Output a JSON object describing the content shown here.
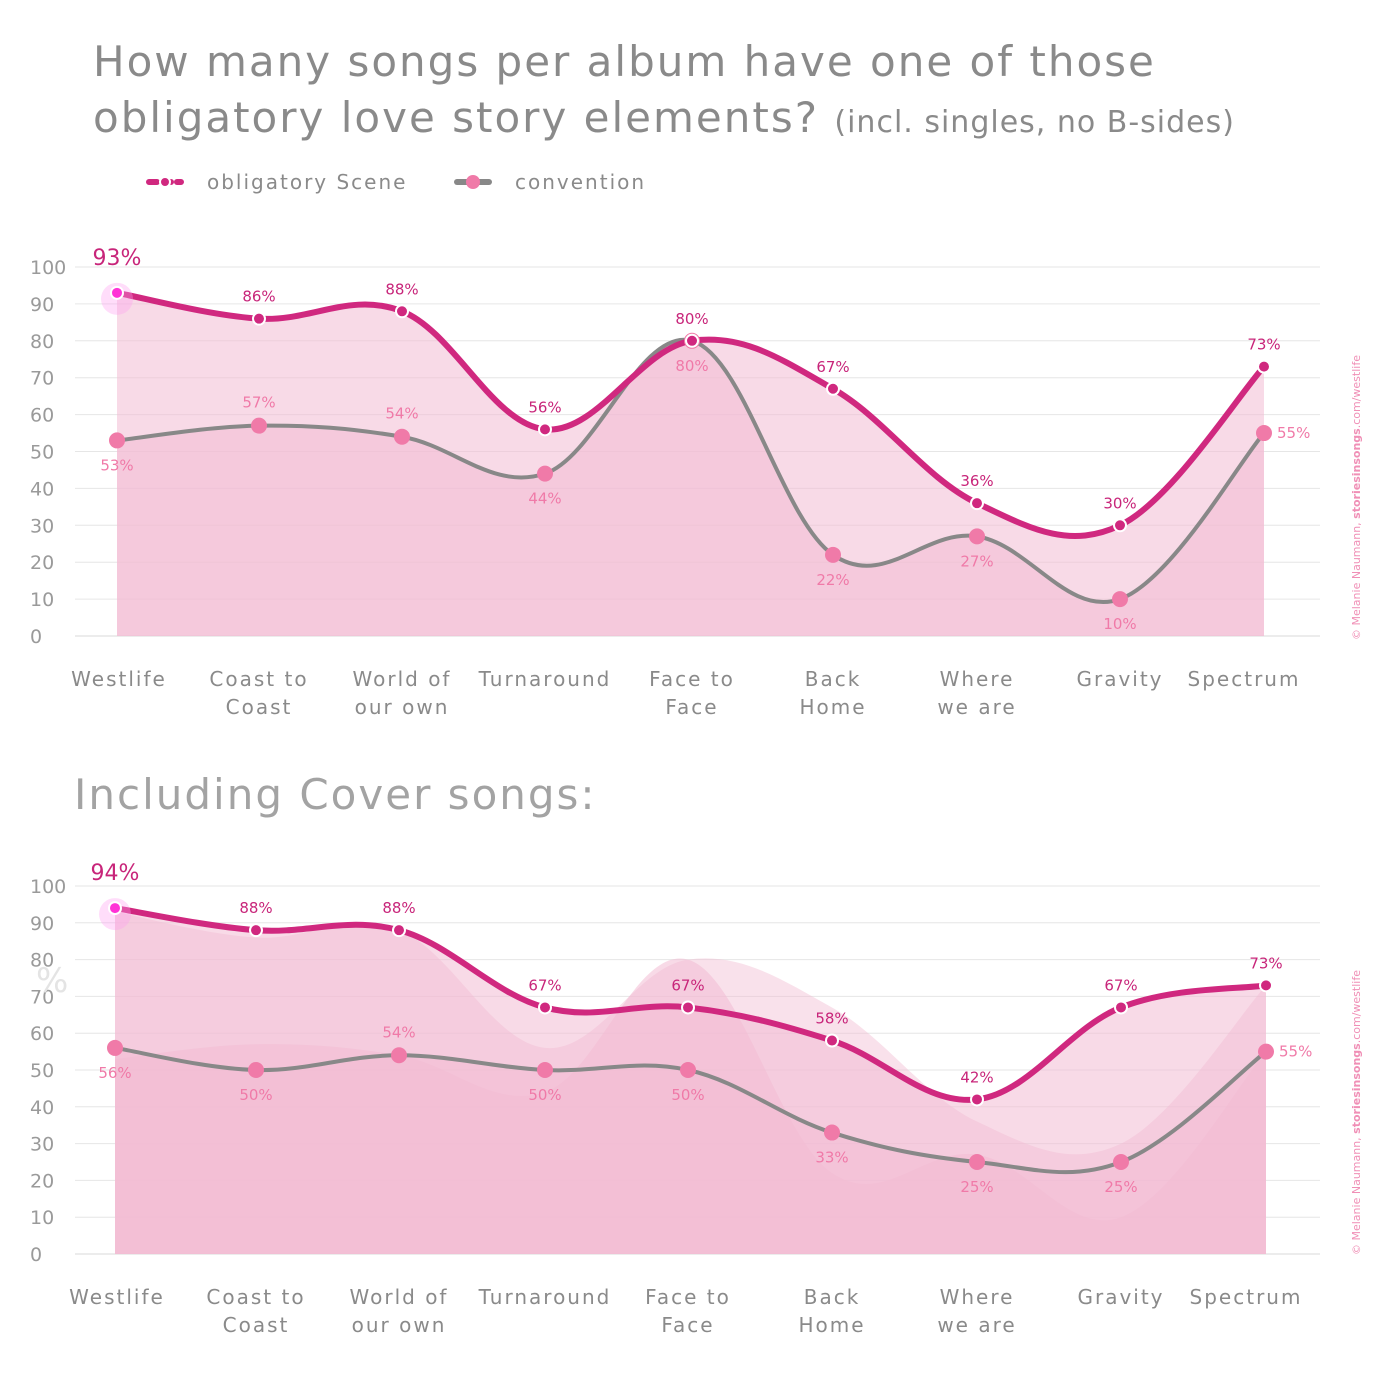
{
  "title": "How many songs per album have one of those obligatory love story elements?",
  "title_note": "(incl. singles, no B-sides)",
  "subtitle": "Including Cover songs:",
  "legend": [
    {
      "label": "obligatory Scene",
      "color": "#d0287f"
    },
    {
      "label": "convention",
      "color": "#f07aa8"
    }
  ],
  "credit": {
    "prefix": "© Melanie Naumann, ",
    "bold": "storiesinsongs",
    "suffix": ".com/westlife"
  },
  "colors": {
    "scene_line": "#d0287f",
    "convention_line": "#888888",
    "convention_marker": "#f07aa8",
    "area_fill": "#f2bcd3"
  },
  "chart_data": [
    {
      "type": "line",
      "categories": [
        "Westlife",
        "Coast to Coast",
        "World of our own",
        "Turnaround",
        "Face to Face",
        "Back Home",
        "Where we are",
        "Gravity",
        "Spectrum"
      ],
      "category_lines": [
        [
          "Westlife"
        ],
        [
          "Coast to",
          "Coast"
        ],
        [
          "World of",
          "our own"
        ],
        [
          "Turnaround"
        ],
        [
          "Face to",
          "Face"
        ],
        [
          "Back",
          "Home"
        ],
        [
          "Where",
          "we are"
        ],
        [
          "Gravity"
        ],
        [
          "Spectrum"
        ]
      ],
      "yticks": [
        "0",
        "10",
        "20",
        "30",
        "40",
        "50",
        "60",
        "70",
        "80",
        "90",
        "100"
      ],
      "ylim": [
        0,
        100
      ],
      "grid": true,
      "series": [
        {
          "name": "obligatory Scene",
          "values": [
            93,
            86,
            88,
            56,
            80,
            67,
            36,
            30,
            73
          ],
          "labels": [
            "93%",
            "86%",
            "88%",
            "56%",
            "80%",
            "67%",
            "36%",
            "30%",
            "73%"
          ]
        },
        {
          "name": "convention",
          "values": [
            53,
            57,
            54,
            44,
            80,
            22,
            27,
            10,
            55
          ],
          "labels": [
            "53%",
            "57%",
            "54%",
            "44%",
            "80%",
            "22%",
            "27%",
            "10%",
            "55%"
          ]
        }
      ]
    },
    {
      "type": "line",
      "categories": [
        "Westlife",
        "Coast to Coast",
        "World of our own",
        "Turnaround",
        "Face to Face",
        "Back Home",
        "Where we are",
        "Gravity",
        "Spectrum"
      ],
      "category_lines": [
        [
          "Westlife"
        ],
        [
          "Coast to",
          "Coast"
        ],
        [
          "World of",
          "our own"
        ],
        [
          "Turnaround"
        ],
        [
          "Face to",
          "Face"
        ],
        [
          "Back",
          "Home"
        ],
        [
          "Where",
          "we are"
        ],
        [
          "Gravity"
        ],
        [
          "Spectrum"
        ]
      ],
      "yticks": [
        "0",
        "10",
        "20",
        "30",
        "40",
        "50",
        "60",
        "70",
        "80",
        "90",
        "100"
      ],
      "ylim": [
        0,
        100
      ],
      "grid": true,
      "axis_unit": "%",
      "series": [
        {
          "name": "obligatory Scene",
          "values": [
            94,
            88,
            88,
            67,
            67,
            58,
            42,
            67,
            73
          ],
          "labels": [
            "94%",
            "88%",
            "88%",
            "67%",
            "67%",
            "58%",
            "42%",
            "67%",
            "73%"
          ]
        },
        {
          "name": "convention",
          "values": [
            56,
            50,
            54,
            50,
            50,
            33,
            25,
            25,
            55
          ],
          "labels": [
            "56%",
            "50%",
            "54%",
            "50%",
            "50%",
            "33%",
            "25%",
            "25%",
            "55%"
          ]
        }
      ]
    }
  ]
}
